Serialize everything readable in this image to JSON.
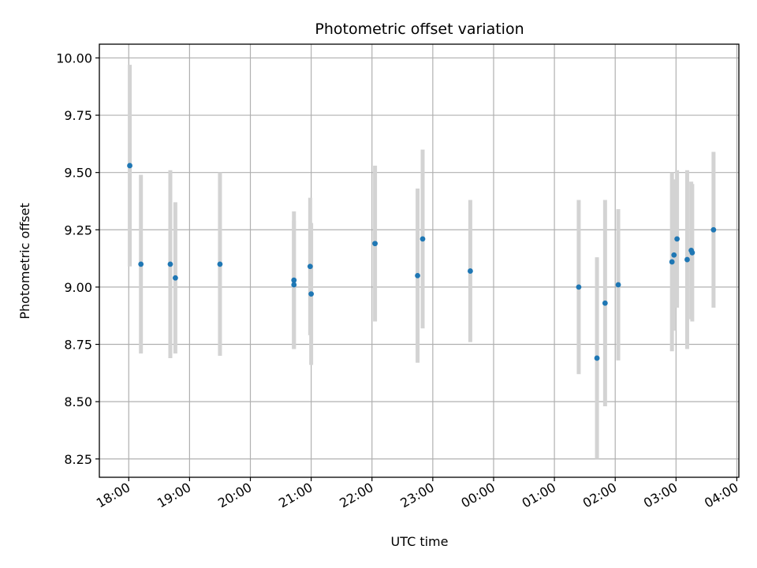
{
  "chart_data": {
    "type": "scatter",
    "title": "Photometric offset variation",
    "xlabel": "UTC time",
    "ylabel": "Photometric offset",
    "x_ticks": [
      "18:00",
      "19:00",
      "20:00",
      "21:00",
      "22:00",
      "23:00",
      "00:00",
      "01:00",
      "02:00",
      "03:00",
      "04:00"
    ],
    "y_ticks": [
      "8.25",
      "8.50",
      "8.75",
      "9.00",
      "9.25",
      "9.50",
      "9.75",
      "10.00"
    ],
    "xlim": [
      "17:31",
      "04:02"
    ],
    "ylim": [
      8.17,
      10.06
    ],
    "grid": true,
    "point_color": "#1f77b4",
    "errorbar_color": "#d3d3d3",
    "series": [
      {
        "points": [
          {
            "x": "18:01",
            "y": 9.53,
            "yerr": 0.44
          },
          {
            "x": "18:12",
            "y": 9.1,
            "yerr": 0.39
          },
          {
            "x": "18:41",
            "y": 9.1,
            "yerr": 0.41
          },
          {
            "x": "18:46",
            "y": 9.04,
            "yerr": 0.33
          },
          {
            "x": "19:30",
            "y": 9.1,
            "yerr": 0.4
          },
          {
            "x": "20:43",
            "y": 9.03,
            "yerr": 0.3
          },
          {
            "x": "20:43",
            "y": 9.01,
            "yerr": 0.28
          },
          {
            "x": "20:59",
            "y": 9.09,
            "yerr": 0.3
          },
          {
            "x": "21:00",
            "y": 8.97,
            "yerr": 0.31
          },
          {
            "x": "22:03",
            "y": 9.19,
            "yerr": 0.34
          },
          {
            "x": "22:45",
            "y": 9.05,
            "yerr": 0.38
          },
          {
            "x": "22:50",
            "y": 9.21,
            "yerr": 0.39
          },
          {
            "x": "23:37",
            "y": 9.07,
            "yerr": 0.31
          },
          {
            "x": "01:24",
            "y": 9.0,
            "yerr": 0.38
          },
          {
            "x": "01:42",
            "y": 8.69,
            "yerr": 0.44
          },
          {
            "x": "01:50",
            "y": 8.93,
            "yerr": 0.45
          },
          {
            "x": "02:03",
            "y": 9.01,
            "yerr": 0.33
          },
          {
            "x": "02:56",
            "y": 9.11,
            "yerr": 0.39
          },
          {
            "x": "02:58",
            "y": 9.14,
            "yerr": 0.33
          },
          {
            "x": "03:01",
            "y": 9.21,
            "yerr": 0.3
          },
          {
            "x": "03:11",
            "y": 9.12,
            "yerr": 0.39
          },
          {
            "x": "03:15",
            "y": 9.16,
            "yerr": 0.3
          },
          {
            "x": "03:16",
            "y": 9.15,
            "yerr": 0.3
          },
          {
            "x": "03:37",
            "y": 9.25,
            "yerr": 0.34
          }
        ]
      }
    ]
  }
}
